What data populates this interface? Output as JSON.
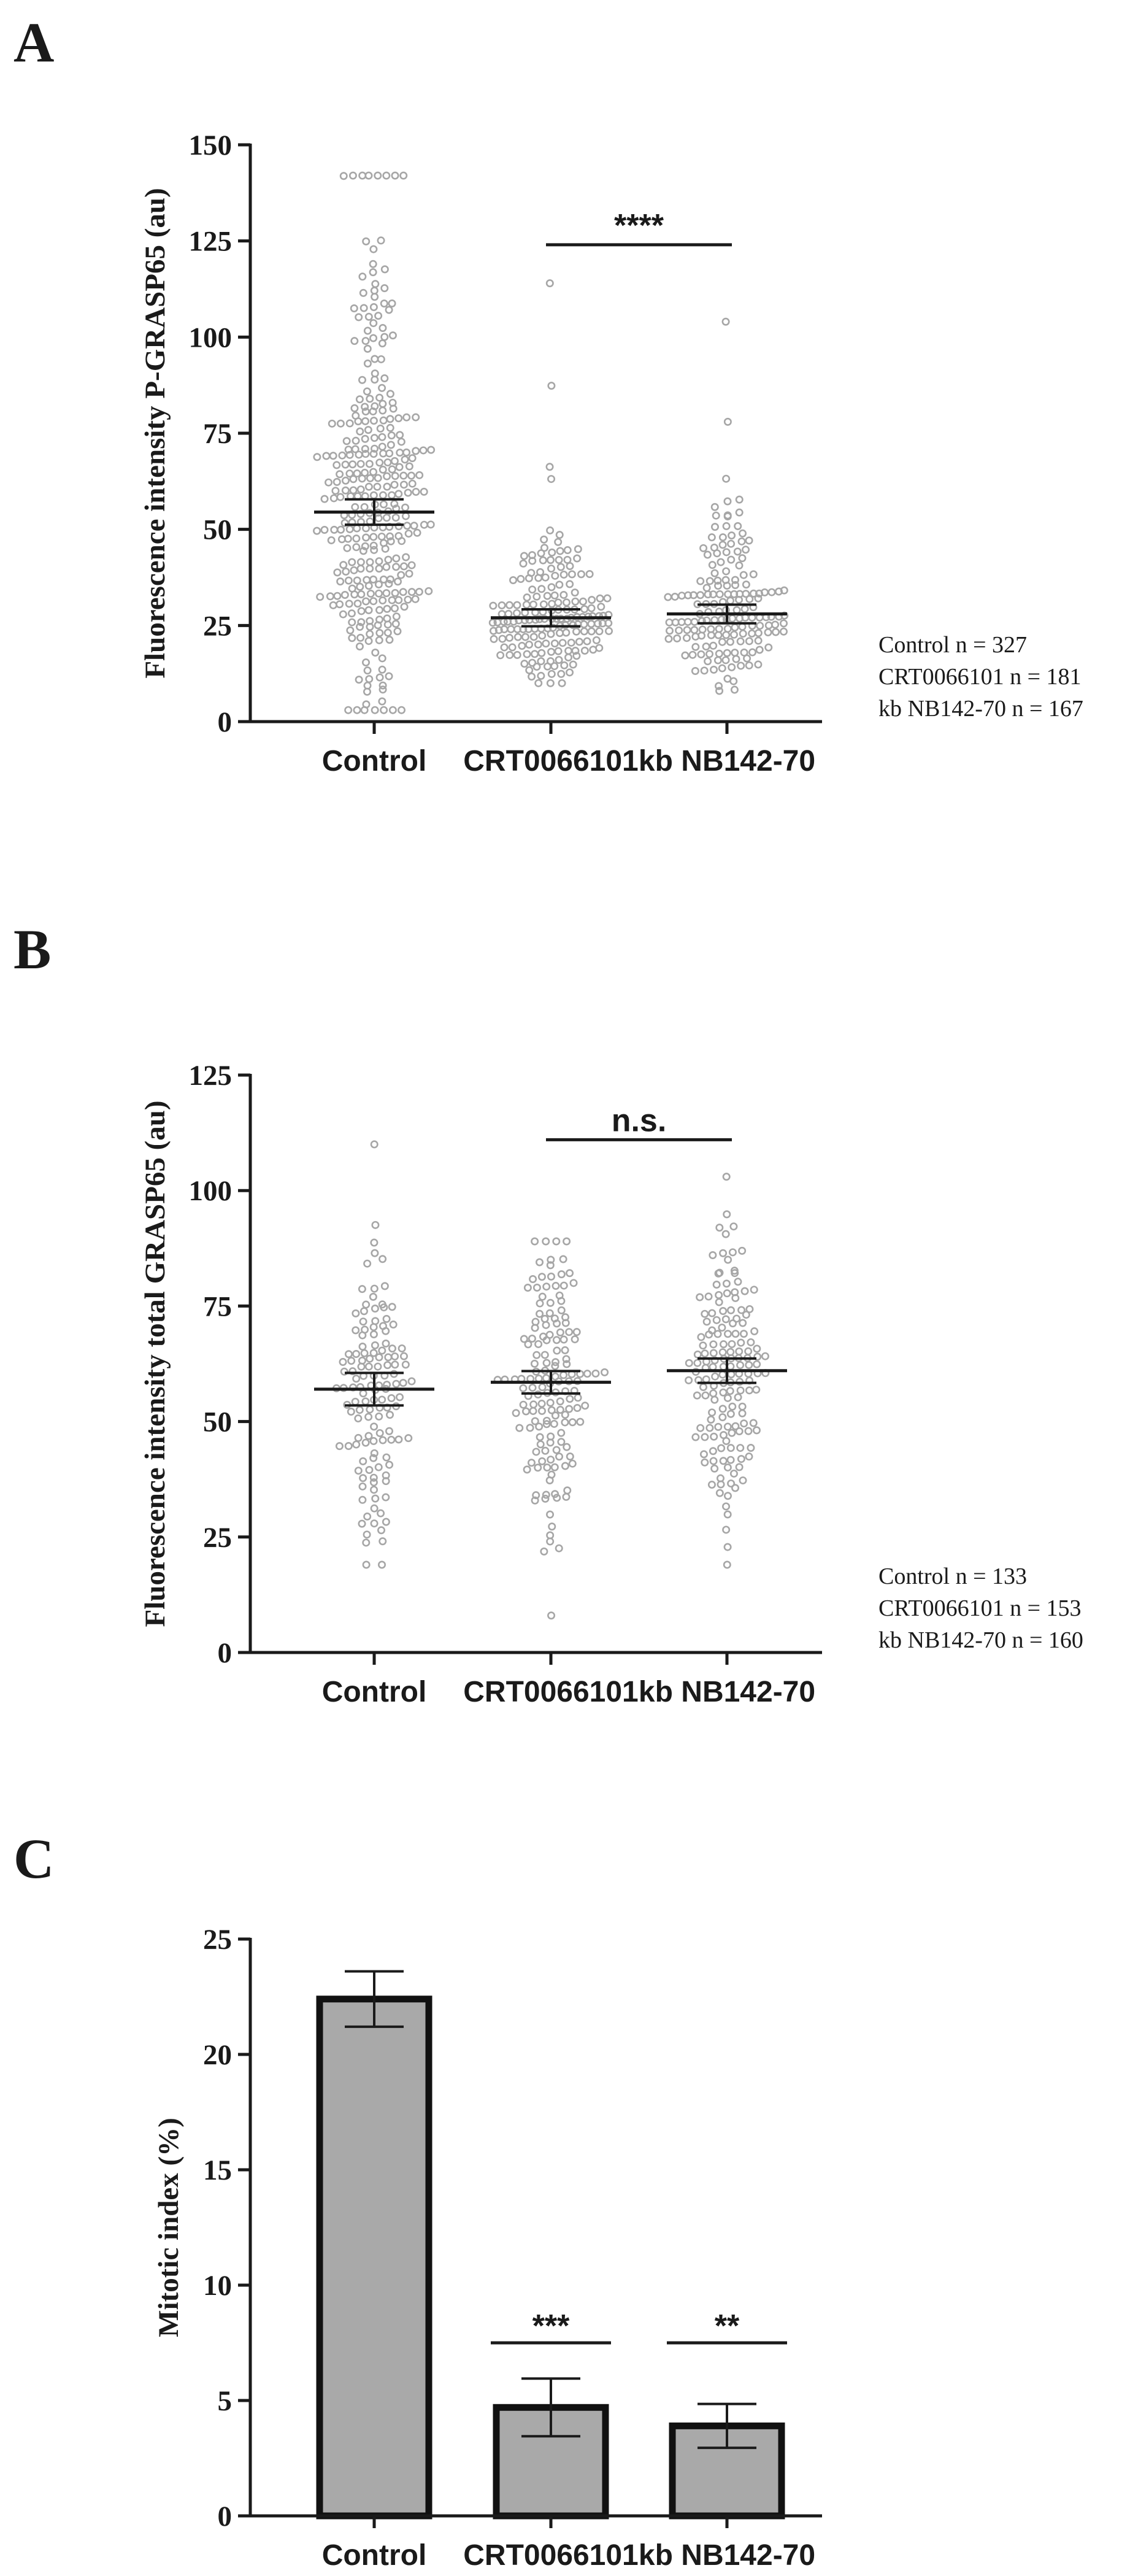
{
  "chart_data": [
    {
      "panel": "A",
      "type": "scatter",
      "ylabel": "Fluorescence intensity P-GRASP65 (au)",
      "xlabel": "",
      "ylim": [
        0,
        150
      ],
      "yticks": [
        0,
        25,
        50,
        75,
        100,
        125,
        150
      ],
      "categories": [
        "Control",
        "CRT0066101",
        "kb NB142-70"
      ],
      "summary": [
        {
          "name": "Control",
          "n": 327,
          "mean": 54.5,
          "sem": 1.5,
          "min": 3,
          "max": 142
        },
        {
          "name": "CRT0066101",
          "n": 181,
          "mean": 27,
          "sem": 1.0,
          "min": 10,
          "max": 114
        },
        {
          "name": "kb NB142-70",
          "n": 167,
          "mean": 28,
          "sem": 1.1,
          "min": 8,
          "max": 104
        }
      ],
      "significance": [
        {
          "from": "CRT0066101",
          "to": "kb NB142-70",
          "label": "****",
          "y": 124
        }
      ],
      "n_labels": [
        "Control n = 327",
        "CRT0066101 n = 181",
        "kb NB142-70 n = 167"
      ]
    },
    {
      "panel": "B",
      "type": "scatter",
      "ylabel": "Fluorescence intensity total GRASP65 (au)",
      "xlabel": "",
      "ylim": [
        0,
        125
      ],
      "yticks": [
        0,
        25,
        50,
        75,
        100,
        125
      ],
      "categories": [
        "Control",
        "CRT0066101",
        "kb NB142-70"
      ],
      "summary": [
        {
          "name": "Control",
          "n": 133,
          "mean": 57,
          "sem": 1.6,
          "min": 19,
          "max": 110
        },
        {
          "name": "CRT0066101",
          "n": 153,
          "mean": 58.5,
          "sem": 1.1,
          "min": 8,
          "max": 89
        },
        {
          "name": "kb NB142-70",
          "n": 160,
          "mean": 61,
          "sem": 1.2,
          "min": 19,
          "max": 103
        }
      ],
      "significance": [
        {
          "from": "CRT0066101",
          "to": "kb NB142-70",
          "label": "n.s.",
          "y": 111
        }
      ],
      "n_labels": [
        "Control n = 133",
        "CRT0066101 n = 153",
        "kb NB142-70 n = 160"
      ]
    },
    {
      "panel": "C",
      "type": "bar",
      "ylabel": "Mitotic index (%)",
      "xlabel": "",
      "ylim": [
        0,
        25
      ],
      "yticks": [
        0,
        5,
        10,
        15,
        20,
        25
      ],
      "categories": [
        "Control",
        "CRT0066101",
        "kb NB142-70"
      ],
      "values": [
        22.4,
        4.7,
        3.9
      ],
      "errors": [
        1.2,
        1.25,
        0.95
      ],
      "significance": [
        {
          "over": "CRT0066101",
          "label": "***",
          "y": 7.5
        },
        {
          "over": "kb NB142-70",
          "label": "**",
          "y": 7.5
        }
      ]
    }
  ]
}
